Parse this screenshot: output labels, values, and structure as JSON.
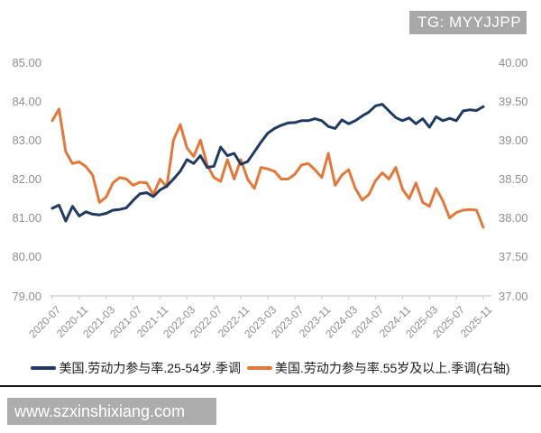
{
  "watermark": {
    "tag": "TG: MYYJJPP"
  },
  "footer": {
    "url": "www.szxinshixiang.com"
  },
  "chart_data": {
    "type": "line",
    "x": [
      "2020-07",
      "2020-08",
      "2020-09",
      "2020-10",
      "2020-11",
      "2020-12",
      "2021-01",
      "2021-02",
      "2021-03",
      "2021-04",
      "2021-05",
      "2021-06",
      "2021-07",
      "2021-08",
      "2021-09",
      "2021-10",
      "2021-11",
      "2021-12",
      "2022-01",
      "2022-02",
      "2022-03",
      "2022-04",
      "2022-05",
      "2022-06",
      "2022-07",
      "2022-08",
      "2022-09",
      "2022-10",
      "2022-11",
      "2022-12",
      "2023-01",
      "2023-02",
      "2023-03",
      "2023-04",
      "2023-05",
      "2023-06",
      "2023-07",
      "2023-08",
      "2023-09",
      "2023-10",
      "2023-11",
      "2023-12",
      "2024-01",
      "2024-02",
      "2024-03",
      "2024-04",
      "2024-05",
      "2024-06",
      "2024-07",
      "2024-08",
      "2024-09",
      "2024-10",
      "2024-11",
      "2024-12",
      "2025-01",
      "2025-02",
      "2025-03",
      "2025-04",
      "2025-05",
      "2025-06",
      "2025-07",
      "2025-08",
      "2025-09",
      "2025-10",
      "2025-11"
    ],
    "x_tick_labels": [
      "2020-07",
      "2020-11",
      "2021-03",
      "2021-07",
      "2021-11",
      "2022-03",
      "2022-07",
      "2022-11",
      "2023-03",
      "2023-07",
      "2023-11",
      "2024-03",
      "2024-07",
      "2024-11",
      "2025-03",
      "2025-07",
      "2025-11"
    ],
    "series": [
      {
        "name": "美国.劳动力参与率.25-54岁.季调",
        "axis": "left",
        "color": "#1f3a63",
        "values": [
          81.25,
          81.33,
          80.92,
          81.3,
          81.05,
          81.16,
          81.1,
          81.08,
          81.12,
          81.2,
          81.22,
          81.26,
          81.45,
          81.62,
          81.65,
          81.55,
          81.72,
          81.82,
          82.0,
          82.2,
          82.5,
          82.4,
          82.6,
          82.3,
          82.33,
          82.82,
          82.6,
          82.66,
          82.38,
          82.45,
          82.7,
          82.95,
          83.18,
          83.3,
          83.38,
          83.44,
          83.45,
          83.5,
          83.5,
          83.55,
          83.5,
          83.35,
          83.3,
          83.52,
          83.42,
          83.5,
          83.62,
          83.72,
          83.88,
          83.92,
          83.75,
          83.58,
          83.5,
          83.57,
          83.42,
          83.55,
          83.33,
          83.6,
          83.5,
          83.56,
          83.5,
          83.75,
          83.78,
          83.76,
          83.86
        ]
      },
      {
        "name": "美国.劳动力参与率.55岁及以上.季调(右轴)",
        "axis": "right",
        "color": "#e2793b",
        "values": [
          39.25,
          39.4,
          38.85,
          38.7,
          38.72,
          38.66,
          38.55,
          38.2,
          38.27,
          38.45,
          38.52,
          38.5,
          38.42,
          38.46,
          38.45,
          38.3,
          38.5,
          38.4,
          39.0,
          39.2,
          38.9,
          38.79,
          39.0,
          38.68,
          38.52,
          38.47,
          38.75,
          38.5,
          38.75,
          38.5,
          38.38,
          38.65,
          38.63,
          38.6,
          38.5,
          38.5,
          38.56,
          38.68,
          38.7,
          38.62,
          38.52,
          38.83,
          38.42,
          38.55,
          38.62,
          38.38,
          38.23,
          38.3,
          38.48,
          38.58,
          38.5,
          38.65,
          38.37,
          38.25,
          38.45,
          38.2,
          38.15,
          38.38,
          38.22,
          38.0,
          38.07,
          38.1,
          38.11,
          38.1,
          37.88
        ]
      }
    ],
    "left_axis": {
      "min": 79,
      "max": 85,
      "ticks": [
        "85.00",
        "84.00",
        "83.00",
        "82.00",
        "81.00",
        "80.00",
        "79.00"
      ]
    },
    "right_axis": {
      "min": 37,
      "max": 40,
      "ticks": [
        "40.00",
        "39.50",
        "39.00",
        "38.50",
        "38.00",
        "37.50",
        "37.00"
      ]
    },
    "grid": false,
    "legend_position": "bottom"
  }
}
